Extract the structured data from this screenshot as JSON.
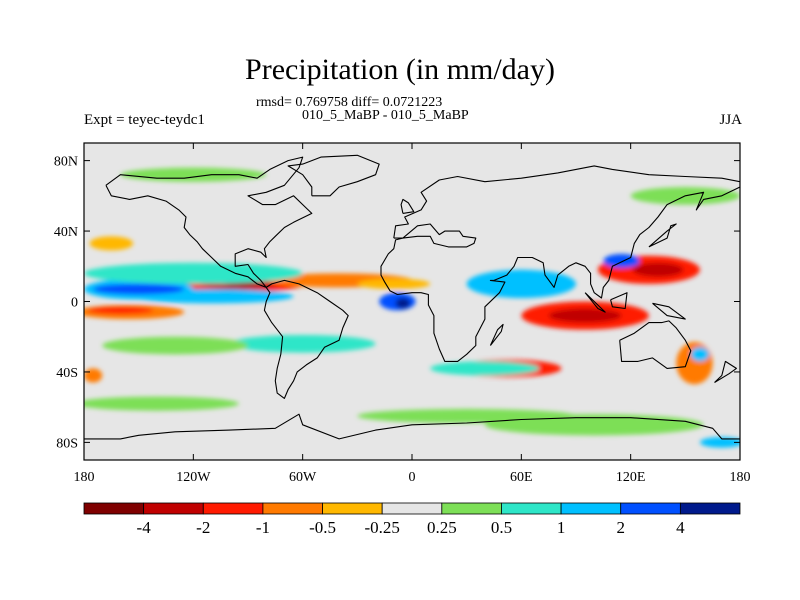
{
  "chart_data": {
    "type": "heatmap",
    "title": "Precipitation (in mm/day)",
    "stats_line": "rmsd= 0.769758 diff= 0.0721223",
    "case_line": "010_5_MaBP - 010_5_MaBP",
    "left_label": "Expt = teyec-teydc1",
    "right_label": "JJA",
    "x_axis": {
      "range": [
        -180,
        180
      ],
      "ticks": [
        -180,
        -120,
        -60,
        0,
        60,
        120,
        180
      ],
      "tick_labels": [
        "180",
        "120W",
        "60W",
        "0",
        "60E",
        "120E",
        "180"
      ]
    },
    "y_axis": {
      "range": [
        -90,
        90
      ],
      "ticks": [
        80,
        40,
        0,
        -40,
        -80
      ],
      "tick_labels": [
        "80N",
        "40N",
        "0",
        "40S",
        "80S"
      ]
    },
    "colorbar": {
      "colors": [
        "#7f0000",
        "#c00000",
        "#ff1a00",
        "#ff7a00",
        "#ffb800",
        "#e6e6e6",
        "#7ddf57",
        "#2ee6c8",
        "#00c0ff",
        "#0050ff",
        "#001a8c"
      ],
      "labels": [
        "-4",
        "-2",
        "-1",
        "-0.5",
        "-0.25",
        "0.25",
        "0.5",
        "1",
        "2",
        "4"
      ]
    },
    "anomalies": [
      {
        "lon": -95,
        "lat": 12,
        "rx": 40,
        "ry": 7,
        "level": -3
      },
      {
        "lon": -95,
        "lat": 12,
        "rx": 24,
        "ry": 5,
        "level": -4
      },
      {
        "lon": -95,
        "lat": 12,
        "rx": 12,
        "ry": 3,
        "level": -5
      },
      {
        "lon": -40,
        "lat": 12,
        "rx": 40,
        "ry": 4,
        "level": -2
      },
      {
        "lon": -150,
        "lat": 7,
        "rx": 30,
        "ry": 6,
        "level": 3
      },
      {
        "lon": -110,
        "lat": 3,
        "rx": 45,
        "ry": 4,
        "level": 3
      },
      {
        "lon": -150,
        "lat": 7,
        "rx": 25,
        "ry": 3,
        "level": 4
      },
      {
        "lon": -120,
        "lat": 16,
        "rx": 60,
        "ry": 6,
        "level": 2
      },
      {
        "lon": -155,
        "lat": -6,
        "rx": 30,
        "ry": 4,
        "level": -2
      },
      {
        "lon": -160,
        "lat": -5,
        "rx": 18,
        "ry": 2,
        "level": -3
      },
      {
        "lon": -60,
        "lat": -24,
        "rx": 40,
        "ry": 5,
        "level": 2
      },
      {
        "lon": -130,
        "lat": -25,
        "rx": 40,
        "ry": 5,
        "level": 1
      },
      {
        "lon": -175,
        "lat": -42,
        "rx": 5,
        "ry": 4,
        "level": -2
      },
      {
        "lon": -140,
        "lat": -58,
        "rx": 45,
        "ry": 4,
        "level": 1
      },
      {
        "lon": -8,
        "lat": 0,
        "rx": 10,
        "ry": 5,
        "level": 4
      },
      {
        "lon": -5,
        "lat": -1,
        "rx": 4,
        "ry": 3,
        "level": 5
      },
      {
        "lon": -10,
        "lat": 10,
        "rx": 20,
        "ry": 3,
        "level": -1
      },
      {
        "lon": 95,
        "lat": -8,
        "rx": 35,
        "ry": 8,
        "level": -3
      },
      {
        "lon": 95,
        "lat": -8,
        "rx": 20,
        "ry": 4,
        "level": -4
      },
      {
        "lon": 130,
        "lat": 18,
        "rx": 28,
        "ry": 8,
        "level": -3
      },
      {
        "lon": 135,
        "lat": 18,
        "rx": 14,
        "ry": 4,
        "level": -4
      },
      {
        "lon": 60,
        "lat": 10,
        "rx": 30,
        "ry": 8,
        "level": 3
      },
      {
        "lon": 115,
        "lat": 23,
        "rx": 10,
        "ry": 4,
        "level": 4
      },
      {
        "lon": 52,
        "lat": -38,
        "rx": 30,
        "ry": 5,
        "level": -3
      },
      {
        "lon": 40,
        "lat": -38,
        "rx": 30,
        "ry": 4,
        "level": 2
      },
      {
        "lon": 155,
        "lat": -35,
        "rx": 10,
        "ry": 12,
        "level": -2
      },
      {
        "lon": 158,
        "lat": -30,
        "rx": 5,
        "ry": 4,
        "level": 3
      },
      {
        "lon": 100,
        "lat": -70,
        "rx": 60,
        "ry": 6,
        "level": 1
      },
      {
        "lon": 30,
        "lat": -65,
        "rx": 60,
        "ry": 4,
        "level": 1
      },
      {
        "lon": -120,
        "lat": 72,
        "rx": 40,
        "ry": 4,
        "level": 1
      },
      {
        "lon": 150,
        "lat": 60,
        "rx": 30,
        "ry": 5,
        "level": 1
      },
      {
        "lon": -165,
        "lat": 33,
        "rx": 12,
        "ry": 4,
        "level": -1
      },
      {
        "lon": 170,
        "lat": -80,
        "rx": 12,
        "ry": 3,
        "level": 3
      }
    ],
    "coastlines": [
      {
        "name": "americas",
        "points": [
          [
            -168,
            66
          ],
          [
            -160,
            72
          ],
          [
            -140,
            70
          ],
          [
            -125,
            70
          ],
          [
            -110,
            72
          ],
          [
            -95,
            72
          ],
          [
            -85,
            70
          ],
          [
            -78,
            75
          ],
          [
            -68,
            80
          ],
          [
            -60,
            82
          ],
          [
            -62,
            76
          ],
          [
            -70,
            66
          ],
          [
            -80,
            62
          ],
          [
            -90,
            60
          ],
          [
            -82,
            55
          ],
          [
            -75,
            55
          ],
          [
            -65,
            60
          ],
          [
            -60,
            55
          ],
          [
            -55,
            50
          ],
          [
            -65,
            45
          ],
          [
            -70,
            42
          ],
          [
            -75,
            37
          ],
          [
            -78,
            34
          ],
          [
            -81,
            30
          ],
          [
            -80,
            25
          ],
          [
            -83,
            28
          ],
          [
            -90,
            30
          ],
          [
            -97,
            27
          ],
          [
            -97,
            20
          ],
          [
            -90,
            21
          ],
          [
            -87,
            16
          ],
          [
            -83,
            12
          ],
          [
            -80,
            8
          ],
          [
            -77,
            10
          ],
          [
            -70,
            12
          ],
          [
            -62,
            10
          ],
          [
            -52,
            5
          ],
          [
            -45,
            0
          ],
          [
            -38,
            -5
          ],
          [
            -35,
            -8
          ],
          [
            -38,
            -15
          ],
          [
            -40,
            -22
          ],
          [
            -48,
            -26
          ],
          [
            -52,
            -32
          ],
          [
            -58,
            -36
          ],
          [
            -63,
            -40
          ],
          [
            -65,
            -45
          ],
          [
            -68,
            -50
          ],
          [
            -70,
            -55
          ],
          [
            -74,
            -52
          ],
          [
            -75,
            -45
          ],
          [
            -74,
            -38
          ],
          [
            -72,
            -30
          ],
          [
            -71,
            -20
          ],
          [
            -77,
            -12
          ],
          [
            -81,
            -5
          ],
          [
            -80,
            0
          ],
          [
            -78,
            5
          ],
          [
            -80,
            8
          ],
          [
            -85,
            10
          ],
          [
            -90,
            14
          ],
          [
            -97,
            16
          ],
          [
            -105,
            20
          ],
          [
            -110,
            25
          ],
          [
            -115,
            30
          ],
          [
            -118,
            34
          ],
          [
            -122,
            38
          ],
          [
            -125,
            42
          ],
          [
            -124,
            48
          ],
          [
            -128,
            52
          ],
          [
            -135,
            57
          ],
          [
            -145,
            60
          ],
          [
            -155,
            58
          ],
          [
            -165,
            60
          ],
          [
            -168,
            66
          ]
        ]
      },
      {
        "name": "greenland",
        "points": [
          [
            -55,
            60
          ],
          [
            -45,
            60
          ],
          [
            -40,
            65
          ],
          [
            -30,
            68
          ],
          [
            -20,
            72
          ],
          [
            -18,
            78
          ],
          [
            -30,
            83
          ],
          [
            -50,
            82
          ],
          [
            -60,
            78
          ],
          [
            -68,
            77
          ],
          [
            -60,
            72
          ],
          [
            -55,
            65
          ],
          [
            -55,
            60
          ]
        ]
      },
      {
        "name": "eurasia-africa",
        "points": [
          [
            -10,
            36
          ],
          [
            -9,
            43
          ],
          [
            -2,
            44
          ],
          [
            -4,
            48
          ],
          [
            5,
            52
          ],
          [
            8,
            57
          ],
          [
            5,
            62
          ],
          [
            15,
            69
          ],
          [
            25,
            71
          ],
          [
            40,
            68
          ],
          [
            60,
            70
          ],
          [
            80,
            73
          ],
          [
            100,
            77
          ],
          [
            110,
            75
          ],
          [
            130,
            72
          ],
          [
            150,
            71
          ],
          [
            170,
            70
          ],
          [
            180,
            68
          ],
          [
            180,
            65
          ],
          [
            170,
            60
          ],
          [
            160,
            58
          ],
          [
            156,
            52
          ],
          [
            160,
            62
          ],
          [
            150,
            60
          ],
          [
            140,
            55
          ],
          [
            135,
            48
          ],
          [
            130,
            42
          ],
          [
            125,
            38
          ],
          [
            122,
            33
          ],
          [
            120,
            25
          ],
          [
            110,
            20
          ],
          [
            108,
            12
          ],
          [
            105,
            8
          ],
          [
            104,
            2
          ],
          [
            100,
            5
          ],
          [
            98,
            10
          ],
          [
            98,
            16
          ],
          [
            95,
            20
          ],
          [
            90,
            22
          ],
          [
            86,
            20
          ],
          [
            80,
            15
          ],
          [
            78,
            8
          ],
          [
            73,
            15
          ],
          [
            72,
            22
          ],
          [
            66,
            25
          ],
          [
            58,
            25
          ],
          [
            56,
            20
          ],
          [
            52,
            15
          ],
          [
            45,
            12
          ],
          [
            43,
            12
          ],
          [
            51,
            11
          ],
          [
            48,
            5
          ],
          [
            40,
            -3
          ],
          [
            40,
            -10
          ],
          [
            35,
            -20
          ],
          [
            35,
            -25
          ],
          [
            30,
            -30
          ],
          [
            25,
            -34
          ],
          [
            18,
            -34
          ],
          [
            15,
            -27
          ],
          [
            12,
            -18
          ],
          [
            12,
            -8
          ],
          [
            9,
            -2
          ],
          [
            9,
            4
          ],
          [
            5,
            5
          ],
          [
            0,
            5
          ],
          [
            -8,
            4
          ],
          [
            -12,
            6
          ],
          [
            -15,
            11
          ],
          [
            -17,
            15
          ],
          [
            -17,
            20
          ],
          [
            -13,
            27
          ],
          [
            -10,
            30
          ],
          [
            -9,
            35
          ],
          [
            -5,
            36
          ],
          [
            3,
            37
          ],
          [
            10,
            37
          ],
          [
            12,
            33
          ],
          [
            20,
            31
          ],
          [
            30,
            31
          ],
          [
            34,
            33
          ],
          [
            35,
            36
          ],
          [
            28,
            37
          ],
          [
            26,
            40
          ],
          [
            18,
            40
          ],
          [
            15,
            38
          ],
          [
            10,
            44
          ],
          [
            3,
            43
          ],
          [
            -5,
            36
          ],
          [
            -10,
            36
          ]
        ]
      },
      {
        "name": "madagascar",
        "points": [
          [
            43,
            -25
          ],
          [
            49,
            -17
          ],
          [
            50,
            -13
          ],
          [
            47,
            -16
          ],
          [
            43,
            -25
          ]
        ]
      },
      {
        "name": "australia",
        "points": [
          [
            114,
            -22
          ],
          [
            122,
            -18
          ],
          [
            130,
            -12
          ],
          [
            137,
            -12
          ],
          [
            141,
            -11
          ],
          [
            145,
            -15
          ],
          [
            150,
            -22
          ],
          [
            153,
            -28
          ],
          [
            150,
            -37
          ],
          [
            140,
            -38
          ],
          [
            132,
            -32
          ],
          [
            124,
            -34
          ],
          [
            115,
            -34
          ],
          [
            114,
            -22
          ]
        ]
      },
      {
        "name": "new-guinea",
        "points": [
          [
            132,
            -1
          ],
          [
            141,
            -3
          ],
          [
            150,
            -10
          ],
          [
            140,
            -8
          ],
          [
            132,
            -1
          ]
        ]
      },
      {
        "name": "borneo",
        "points": [
          [
            109,
            1
          ],
          [
            118,
            5
          ],
          [
            117,
            -4
          ],
          [
            110,
            -3
          ],
          [
            109,
            1
          ]
        ]
      },
      {
        "name": "sumatra",
        "points": [
          [
            95,
            5
          ],
          [
            106,
            -6
          ],
          [
            102,
            -4
          ],
          [
            95,
            5
          ]
        ]
      },
      {
        "name": "japan",
        "points": [
          [
            130,
            31
          ],
          [
            140,
            36
          ],
          [
            142,
            43
          ],
          [
            145,
            44
          ],
          [
            140,
            40
          ],
          [
            130,
            31
          ]
        ]
      },
      {
        "name": "uk",
        "points": [
          [
            -5,
            50
          ],
          [
            1,
            51
          ],
          [
            -2,
            56
          ],
          [
            -5,
            58
          ],
          [
            -6,
            55
          ],
          [
            -5,
            50
          ]
        ]
      },
      {
        "name": "new-zealand",
        "points": [
          [
            166,
            -46
          ],
          [
            174,
            -41
          ],
          [
            178,
            -38
          ],
          [
            172,
            -34
          ],
          [
            170,
            -42
          ],
          [
            166,
            -46
          ]
        ]
      },
      {
        "name": "antarctica",
        "points": [
          [
            -180,
            -78
          ],
          [
            -160,
            -78
          ],
          [
            -150,
            -76
          ],
          [
            -130,
            -74
          ],
          [
            -100,
            -73
          ],
          [
            -75,
            -72
          ],
          [
            -62,
            -64
          ],
          [
            -60,
            -70
          ],
          [
            -40,
            -78
          ],
          [
            -20,
            -73
          ],
          [
            0,
            -70
          ],
          [
            30,
            -69
          ],
          [
            60,
            -67
          ],
          [
            90,
            -66
          ],
          [
            120,
            -66
          ],
          [
            150,
            -68
          ],
          [
            165,
            -72
          ],
          [
            170,
            -78
          ],
          [
            180,
            -78
          ]
        ]
      }
    ]
  }
}
